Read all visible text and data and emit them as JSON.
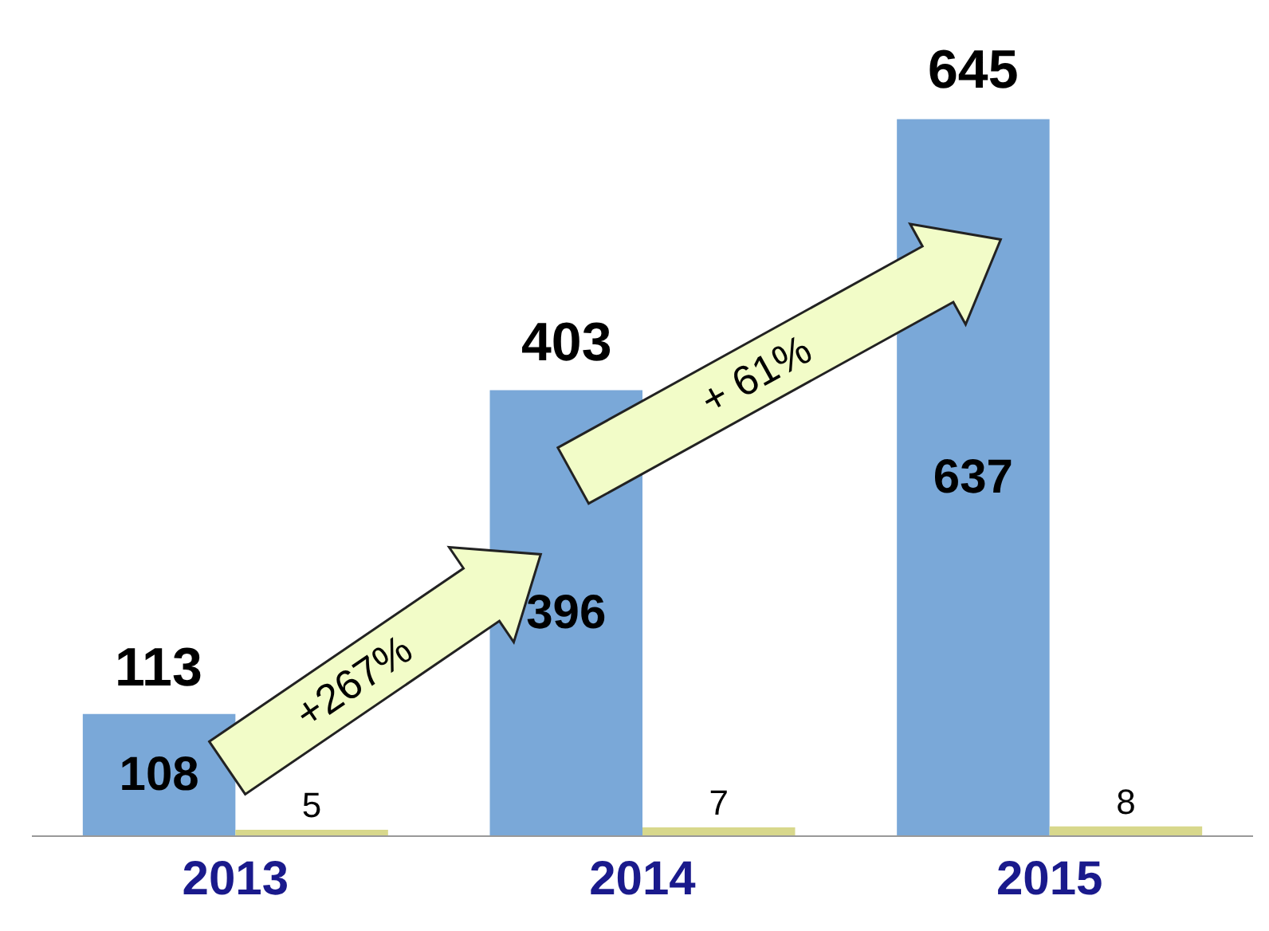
{
  "chart_data": {
    "type": "bar",
    "categories": [
      "2013",
      "2014",
      "2015"
    ],
    "series": [
      {
        "color": "#7aa8d8",
        "values": [
          108,
          396,
          637
        ]
      },
      {
        "color": "#d8d88c",
        "values": [
          5,
          7,
          8
        ]
      }
    ],
    "totals": [
      "113",
      "403",
      "645"
    ],
    "data_labels": true,
    "annotations": [
      "+267%",
      "+ 61%"
    ]
  }
}
